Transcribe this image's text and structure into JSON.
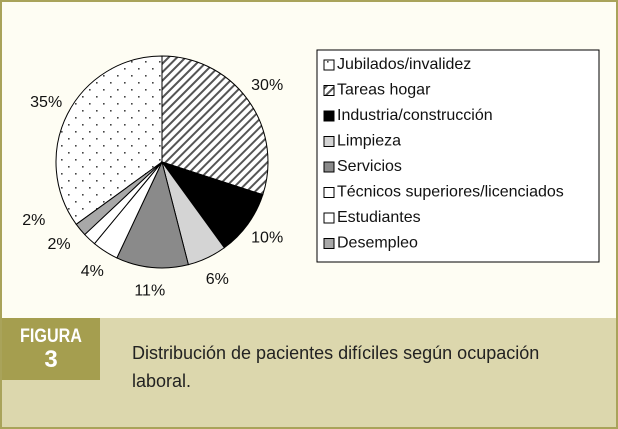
{
  "chart_data": {
    "type": "pie",
    "categories": [
      "Jubilados/invalidez",
      "Tareas hogar",
      "Industria/construcción",
      "Limpieza",
      "Servicios",
      "Técnicos superiores/licenciados",
      "Estudiantes",
      "Desempleo"
    ],
    "values": [
      35,
      30,
      10,
      6,
      11,
      4,
      2,
      2
    ],
    "value_labels": [
      "35%",
      "30%",
      "10%",
      "6%",
      "11%",
      "4%",
      "2%",
      "2%"
    ],
    "colors": [
      "url(#dots)",
      "url(#hatch)",
      "#000000",
      "#d4d4d4",
      "#8a8a8a",
      "#ffffff",
      "#ffffff",
      "#a8a8a8"
    ],
    "legend": "right"
  },
  "figure": {
    "label": "FIGURA",
    "number": "3",
    "caption_lines": [
      "Distribución de pacientes difíciles según ocupación",
      "laboral."
    ]
  }
}
